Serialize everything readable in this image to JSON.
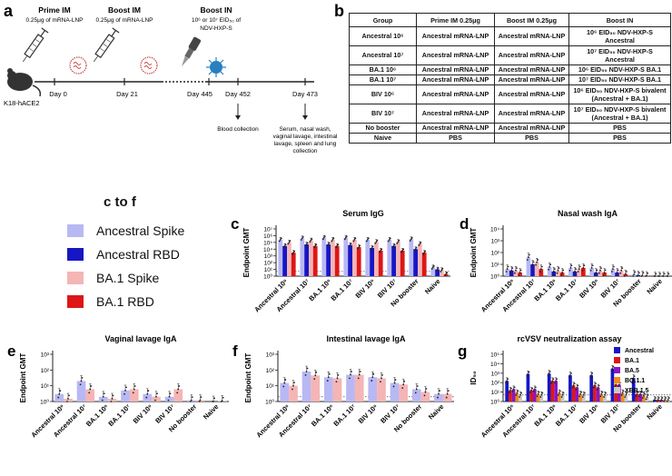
{
  "panel_labels": {
    "a": "a",
    "b": "b",
    "c": "c",
    "d": "d",
    "e": "e",
    "f": "f",
    "g": "g"
  },
  "schematic": {
    "prime_title": "Prime IM",
    "prime_sub": "0.25μg of mRNA-LNP",
    "boost_im_title": "Boost IM",
    "boost_im_sub": "0.25μg of mRNA-LNP",
    "boost_in_title": "Boost IN",
    "boost_in_sub1": "10⁶ or 10⁷ EID₅₀ of",
    "boost_in_sub2": "NDV-HXP-S",
    "mouse_label": "K18-hACE2",
    "days": [
      "Day 0",
      "Day 21",
      "Day 445",
      "Day 452",
      "Day 473"
    ],
    "blood": "Blood collection",
    "collect": [
      "Serum, nasal wash,",
      "vaginal lavage, intestinal",
      "lavage, spleen and lung",
      "collection"
    ]
  },
  "table_b": {
    "headers": [
      "Group",
      "Prime IM 0.25μg",
      "Boost IM 0.25μg",
      "Boost IN"
    ],
    "rows": [
      [
        "Ancestral 10⁶",
        "Ancestral mRNA-LNP",
        "Ancestral mRNA-LNP",
        "10⁶ EID₅₀ NDV-HXP-S Ancestral"
      ],
      [
        "Ancestral 10⁷",
        "Ancestral mRNA-LNP",
        "Ancestral mRNA-LNP",
        "10⁷ EID₅₀ NDV-HXP-S Ancestral"
      ],
      [
        "BA.1 10⁶",
        "Ancestral mRNA-LNP",
        "Ancestral mRNA-LNP",
        "10⁶ EID₅₀ NDV-HXP-S BA.1"
      ],
      [
        "BA.1 10⁷",
        "Ancestral mRNA-LNP",
        "Ancestral mRNA-LNP",
        "10⁷ EID₅₀ NDV-HXP-S BA.1"
      ],
      [
        "BIV 10⁶",
        "Ancestral mRNA-LNP",
        "Ancestral mRNA-LNP",
        "10⁶ EID₅₀ NDV-HXP-S bivalent (Ancestral + BA.1)"
      ],
      [
        "BIV 10⁷",
        "Ancestral mRNA-LNP",
        "Ancestral mRNA-LNP",
        "10⁷ EID₅₀ NDV-HXP-S bivalent (Ancestral + BA.1)"
      ],
      [
        "No booster",
        "Ancestral mRNA-LNP",
        "Ancestral mRNA-LNP",
        "PBS"
      ],
      [
        "Naive",
        "PBS",
        "PBS",
        "PBS"
      ]
    ]
  },
  "legend_cf": {
    "title": "c to f",
    "items": [
      {
        "label": "Ancestral Spike",
        "color": "#b8b8f4"
      },
      {
        "label": "Ancestral RBD",
        "color": "#1616c4"
      },
      {
        "label": "BA.1 Spike",
        "color": "#f5b5b5"
      },
      {
        "label": "BA.1 RBD",
        "color": "#de1616"
      }
    ]
  },
  "chart_data": [
    {
      "panel": "c",
      "type": "bar",
      "title": "Serum IgG",
      "ylabel": "Endpoint GMT",
      "xlabel": "",
      "yscale": "log",
      "ylim": [
        1,
        10000000
      ],
      "yticks": [
        "10⁰",
        "10¹",
        "10²",
        "10³",
        "10⁴",
        "10⁵",
        "10⁶",
        "10⁷"
      ],
      "categories": [
        "Ancestral 10⁶",
        "Ancestral 10⁷",
        "BA.1 10⁶",
        "BA.1 10⁷",
        "BIV 10⁶",
        "BIV 10⁷",
        "No booster",
        "Naive"
      ],
      "limit_of_detection": 5,
      "series": [
        {
          "name": "Ancestral Spike",
          "color": "#b8b8f4",
          "values": [
            250000,
            400000,
            500000,
            500000,
            250000,
            250000,
            300000,
            20
          ]
        },
        {
          "name": "Ancestral RBD",
          "color": "#1616c4",
          "values": [
            30000,
            50000,
            50000,
            40000,
            15000,
            30000,
            10000,
            10
          ]
        },
        {
          "name": "BA.1 Spike",
          "color": "#f5b5b5",
          "values": [
            100000,
            200000,
            250000,
            250000,
            120000,
            120000,
            60000,
            8
          ]
        },
        {
          "name": "BA.1 RBD",
          "color": "#de1616",
          "values": [
            3000,
            30000,
            30000,
            20000,
            6000,
            6000,
            3000,
            2
          ]
        }
      ]
    },
    {
      "panel": "d",
      "type": "bar",
      "title": "Nasal wash IgA",
      "ylabel": "Endpoint GMT",
      "xlabel": "",
      "yscale": "log",
      "ylim": [
        1,
        10000
      ],
      "yticks": [
        "10⁰",
        "10¹",
        "10²",
        "10³",
        "10⁴"
      ],
      "categories": [
        "Ancestral 10⁶",
        "Ancestral 10⁷",
        "BA.1 10⁶",
        "BA.1 10⁷",
        "BIV 10⁶",
        "BIV 10⁷",
        "No booster",
        "Naive"
      ],
      "series": [
        {
          "name": "Ancestral Spike",
          "color": "#b8b8f4",
          "values": [
            4,
            40,
            6,
            5,
            5,
            4,
            1.4,
            1
          ]
        },
        {
          "name": "Ancestral RBD",
          "color": "#1616c4",
          "values": [
            3,
            10,
            2.5,
            2.5,
            2,
            2,
            1.2,
            1
          ]
        },
        {
          "name": "BA.1 Spike",
          "color": "#f5b5b5",
          "values": [
            3,
            15,
            3,
            4,
            3,
            3,
            1.2,
            1
          ]
        },
        {
          "name": "BA.1 RBD",
          "color": "#de1616",
          "values": [
            2,
            4,
            2,
            5,
            2,
            1.5,
            1.1,
            1
          ]
        }
      ]
    },
    {
      "panel": "e",
      "type": "bar",
      "title": "Vaginal lavage IgA",
      "ylabel": "Endpoint GMT",
      "xlabel": "",
      "yscale": "log",
      "ylim": [
        1,
        1000
      ],
      "yticks": [
        "10⁰",
        "10¹",
        "10²",
        "10³"
      ],
      "categories": [
        "Ancestral 10⁶",
        "Ancestral 10⁷",
        "BA.1 10⁶",
        "BA.1 10⁷",
        "BIV 10⁶",
        "BIV 10⁷",
        "No booster",
        "Naive"
      ],
      "series": [
        {
          "name": "Ancestral Spike",
          "color": "#b8b8f4",
          "values": [
            3,
            20,
            2,
            5,
            3,
            2,
            1.2,
            1
          ]
        },
        {
          "name": "BA.1 Spike",
          "color": "#f5b5b5",
          "values": [
            1.5,
            6,
            1.5,
            6,
            2,
            6,
            1.2,
            1.1
          ]
        }
      ]
    },
    {
      "panel": "f",
      "type": "bar",
      "title": "Intestinal lavage IgA",
      "ylabel": "Endpoint GMT",
      "xlabel": "",
      "yscale": "log",
      "ylim": [
        1,
        1000
      ],
      "yticks": [
        "10⁰",
        "10¹",
        "10²",
        "10³"
      ],
      "categories": [
        "Ancestral 10⁶",
        "Ancestral 10⁷",
        "BA.1 10⁶",
        "BA.1 10⁷",
        "BIV 10⁶",
        "BIV 10⁷",
        "No booster",
        "Naive"
      ],
      "limit_of_detection": 2,
      "series": [
        {
          "name": "Ancestral Spike",
          "color": "#b8b8f4",
          "values": [
            15,
            80,
            35,
            50,
            35,
            15,
            6,
            3
          ]
        },
        {
          "name": "BA.1 Spike",
          "color": "#f5b5b5",
          "values": [
            10,
            45,
            30,
            50,
            30,
            12,
            4,
            3
          ]
        }
      ]
    },
    {
      "panel": "g",
      "type": "bar",
      "title": "rcVSV neutralization assay",
      "ylabel": "ID₅₀",
      "xlabel": "",
      "yscale": "log",
      "ylim": [
        1,
        100000
      ],
      "yticks": [
        "10⁰",
        "10¹",
        "10²",
        "10³",
        "10⁴",
        "10⁵"
      ],
      "categories": [
        "Ancestral 10⁶",
        "Ancestral 10⁷",
        "BA.1 10⁶",
        "BA.1 10⁷",
        "BIV 10⁶",
        "BIV 10⁷",
        "No booster",
        "Naive"
      ],
      "limit_of_detection": 5,
      "series": [
        {
          "name": "Ancestral",
          "color": "#1616c4",
          "values": [
            150,
            800,
            900,
            600,
            600,
            3000,
            300,
            1.5
          ]
        },
        {
          "name": "BA.1",
          "color": "#de1616",
          "values": [
            15,
            15,
            150,
            50,
            50,
            60,
            6,
            1.5
          ]
        },
        {
          "name": "BA.5",
          "color": "#8a16c4",
          "values": [
            20,
            20,
            150,
            30,
            30,
            60,
            6,
            1.5
          ]
        },
        {
          "name": "BQ.1.1",
          "color": "#f08a1c",
          "values": [
            8,
            6,
            8,
            6,
            6,
            8,
            4,
            1.5
          ]
        },
        {
          "name": "XBB.1.5",
          "color": "#c8c8c8",
          "values": [
            5,
            5,
            5,
            5,
            5,
            5,
            3,
            1.5
          ]
        }
      ]
    }
  ]
}
